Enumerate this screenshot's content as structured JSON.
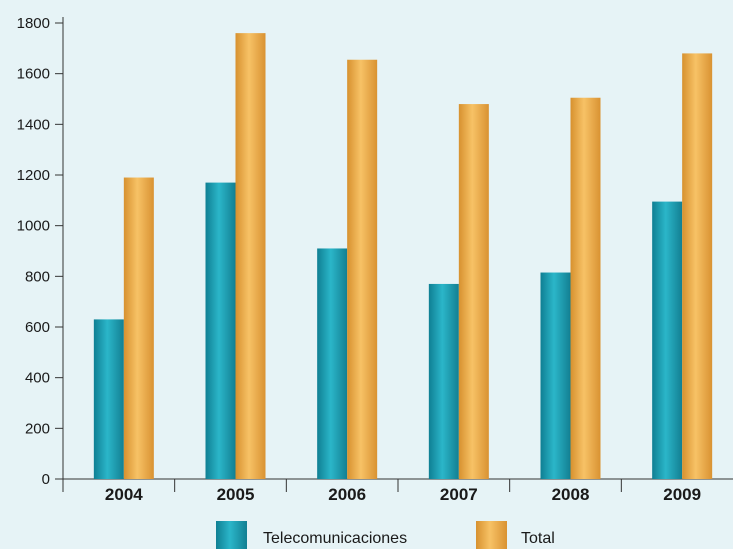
{
  "chart_data": {
    "type": "bar",
    "title": "",
    "xlabel": "",
    "ylabel": "",
    "categories": [
      "2004",
      "2005",
      "2006",
      "2007",
      "2008",
      "2009"
    ],
    "series": [
      {
        "name": "Telecomunicaciones",
        "values": [
          630,
          1170,
          910,
          770,
          815,
          1095
        ],
        "color": "#1ca2b6"
      },
      {
        "name": "Total",
        "values": [
          1190,
          1760,
          1655,
          1480,
          1505,
          1680
        ],
        "color": "#f0b04a"
      }
    ],
    "ylim": [
      0,
      1800
    ],
    "yticks": [
      "0",
      "200",
      "400",
      "600",
      "800",
      "1000",
      "1200",
      "1400",
      "1600",
      "1800"
    ],
    "grid": false,
    "legend": "bottom"
  },
  "colors": {
    "background": "#e6f3f6",
    "axis": "#333333"
  }
}
